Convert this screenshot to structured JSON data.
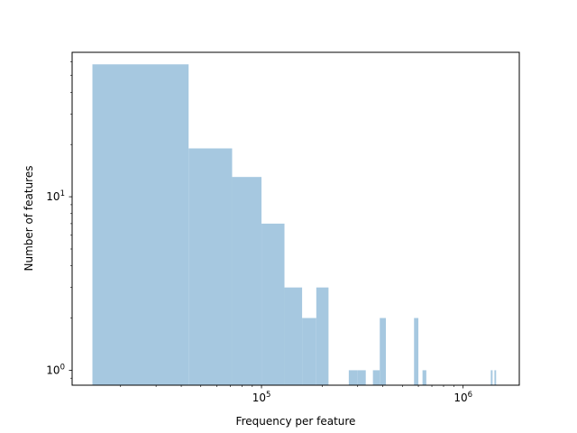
{
  "chart_data": {
    "type": "bar",
    "title": "",
    "xlabel": "Frequency per feature",
    "ylabel": "Number of features",
    "xscale": "log",
    "yscale": "log",
    "xlim": [
      11500,
      1900000
    ],
    "ylim": [
      0.82,
      68
    ],
    "grid": false,
    "legend": "none",
    "bar_color": "#a6c8e0",
    "x_ticks": [
      {
        "value": 100000,
        "base": "10",
        "exp": "5"
      },
      {
        "value": 1000000,
        "base": "10",
        "exp": "6"
      }
    ],
    "y_ticks": [
      {
        "value": 1,
        "base": "10",
        "exp": "0"
      },
      {
        "value": 10,
        "base": "10",
        "exp": "1"
      }
    ],
    "bins": [
      {
        "x0": 14500,
        "x1": 43500,
        "count": 58
      },
      {
        "x0": 43500,
        "x1": 71500,
        "count": 19
      },
      {
        "x0": 71500,
        "x1": 100000,
        "count": 13
      },
      {
        "x0": 100000,
        "x1": 130000,
        "count": 7
      },
      {
        "x0": 130000,
        "x1": 159000,
        "count": 3
      },
      {
        "x0": 159000,
        "x1": 187000,
        "count": 2
      },
      {
        "x0": 187000,
        "x1": 215000,
        "count": 3
      },
      {
        "x0": 271000,
        "x1": 300000,
        "count": 1
      },
      {
        "x0": 300000,
        "x1": 329000,
        "count": 1
      },
      {
        "x0": 357000,
        "x1": 386000,
        "count": 1
      },
      {
        "x0": 386000,
        "x1": 414000,
        "count": 2
      },
      {
        "x0": 571000,
        "x1": 600000,
        "count": 2
      },
      {
        "x0": 629000,
        "x1": 657000,
        "count": 1
      },
      {
        "x0": 1372000,
        "x1": 1400000,
        "count": 1
      },
      {
        "x0": 1430000,
        "x1": 1458000,
        "count": 1
      }
    ]
  }
}
